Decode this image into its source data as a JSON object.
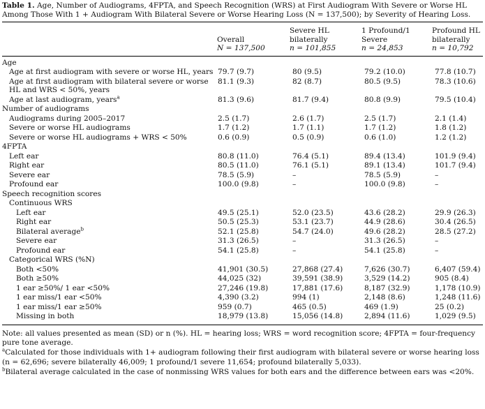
{
  "caption": {
    "label": "Table 1.",
    "text": "Age, Number of Audiograms, 4FPTA, and Speech Recognition (WRS) at First Audiogram With Severe or Worse HL Among Those With 1 + Audiogram With Bilateral Severe or Worse Hearing Loss (N = 137,500); by Severity of Hearing Loss."
  },
  "columns": [
    {
      "line1": "Overall",
      "line2": "N = 137,500"
    },
    {
      "line1": "Severe HL",
      "line1b": "bilaterally",
      "line2": "n = 101,855"
    },
    {
      "line1": "1 Profound/1",
      "line1b": "Severe",
      "line2": "n = 24,853"
    },
    {
      "line1": "Profound HL",
      "line1b": "bilaterally",
      "line2": "n = 10,792"
    }
  ],
  "rows": [
    {
      "indent": 0,
      "label": "Age",
      "values": [
        "",
        "",
        "",
        ""
      ]
    },
    {
      "indent": 1,
      "label": "Age at first audiogram with severe or worse HL, years",
      "values": [
        "79.7 (9.7)",
        "80 (9.5)",
        "79.2 (10.0)",
        "77.8 (10.7)"
      ]
    },
    {
      "indent": 1,
      "label": "Age at first audiogram with bilateral severe or worse HL and WRS < 50%, years",
      "values": [
        "81.1 (9.3)",
        "82 (8.7)",
        "80.5 (9.5)",
        "78.3 (10.6)"
      ]
    },
    {
      "indent": 1,
      "label": "Age at last audiogram, years",
      "sup": "a",
      "values": [
        "81.3 (9.6)",
        "81.7 (9.4)",
        "80.8 (9.9)",
        "79.5 (10.4)"
      ]
    },
    {
      "indent": 0,
      "label": "Number of audiograms",
      "values": [
        "",
        "",
        "",
        ""
      ]
    },
    {
      "indent": 1,
      "label": "Audiograms during 2005–2017",
      "values": [
        "2.5 (1.7)",
        "2.6 (1.7)",
        "2.5 (1.7)",
        "2.1 (1.4)"
      ]
    },
    {
      "indent": 1,
      "label": "Severe or worse HL audiograms",
      "values": [
        "1.7 (1.2)",
        "1.7 (1.1)",
        "1.7 (1.2)",
        "1.8 (1.2)"
      ]
    },
    {
      "indent": 1,
      "label": "Severe or worse HL audiograms + WRS < 50%",
      "values": [
        "0.6 (0.9)",
        "0.5 (0.9)",
        "0.6 (1.0)",
        "1.2 (1.2)"
      ]
    },
    {
      "indent": 0,
      "label": "4FPTA",
      "values": [
        "",
        "",
        "",
        ""
      ]
    },
    {
      "indent": 1,
      "label": "Left ear",
      "values": [
        "80.8 (11.0)",
        "76.4 (5.1)",
        "89.4 (13.4)",
        "101.9 (9.4)"
      ]
    },
    {
      "indent": 1,
      "label": "Right ear",
      "values": [
        "80.5 (11.0)",
        "76.1 (5.1)",
        "89.1 (13.4)",
        "101.7 (9.4)"
      ]
    },
    {
      "indent": 1,
      "label": "Severe ear",
      "values": [
        "78.5 (5.9)",
        "–",
        "78.5 (5.9)",
        "–"
      ]
    },
    {
      "indent": 1,
      "label": "Profound ear",
      "values": [
        "100.0 (9.8)",
        "–",
        "100.0 (9.8)",
        "–"
      ]
    },
    {
      "indent": 0,
      "label": "Speech recognition scores",
      "values": [
        "",
        "",
        "",
        ""
      ]
    },
    {
      "indent": 1,
      "label": "Continuous WRS",
      "values": [
        "",
        "",
        "",
        ""
      ]
    },
    {
      "indent": 2,
      "label": "Left ear",
      "values": [
        "49.5 (25.1)",
        "52.0 (23.5)",
        "43.6 (28.2)",
        "29.9 (26.3)"
      ]
    },
    {
      "indent": 2,
      "label": "Right ear",
      "values": [
        "50.5 (25.3)",
        "53.1 (23.7)",
        "44.9 (28.6)",
        "30.4 (26.5)"
      ]
    },
    {
      "indent": 2,
      "label": "Bilateral average",
      "sup": "b",
      "values": [
        "52.1 (25.8)",
        "54.7 (24.0)",
        "49.6 (28.2)",
        "28.5 (27.2)"
      ]
    },
    {
      "indent": 2,
      "label": "Severe ear",
      "values": [
        "31.3 (26.5)",
        "–",
        "31.3 (26.5)",
        "–"
      ]
    },
    {
      "indent": 2,
      "label": "Profound ear",
      "values": [
        "54.1 (25.8)",
        "–",
        "54.1 (25.8)",
        "–"
      ]
    },
    {
      "indent": 1,
      "label": "Categorical WRS (%N)",
      "values": [
        "",
        "",
        "",
        ""
      ]
    },
    {
      "indent": 2,
      "label": "Both <50%",
      "values": [
        "41,901 (30.5)",
        "27,868 (27.4)",
        "7,626 (30.7)",
        "6,407 (59.4)"
      ]
    },
    {
      "indent": 2,
      "label": "Both ≥50%",
      "values": [
        "44,025 (32)",
        "39,591 (38.9)",
        "3,529 (14.2)",
        "905 (8.4)"
      ]
    },
    {
      "indent": 2,
      "label": "1 ear ≥50%/ 1 ear <50%",
      "values": [
        "27,246 (19.8)",
        "17,881 (17.6)",
        "8,187 (32.9)",
        "1,178 (10.9)"
      ]
    },
    {
      "indent": 2,
      "label": "1 ear miss/1 ear <50%",
      "values": [
        "4,390 (3.2)",
        "994 (1)",
        "2,148 (8.6)",
        "1,248 (11.6)"
      ]
    },
    {
      "indent": 2,
      "label": "1 ear miss/1 ear ≥50%",
      "values": [
        "959 (0.7)",
        "465 (0.5)",
        "469 (1.9)",
        "25 (0.2)"
      ]
    },
    {
      "indent": 2,
      "label": "Missing in both",
      "values": [
        "18,979 (13.8)",
        "15,056 (14.8)",
        "2,894 (11.6)",
        "1,029 (9.5)"
      ]
    }
  ],
  "notes": {
    "general": "Note: all values presented as mean (SD) or n (%). HL = hearing loss; WRS = word recognition score; 4FPTA = four-frequency pure tone average.",
    "a_mark": "a",
    "a": "Calculated for those individuals with 1+ audiogram following their first audiogram with bilateral severe or worse hearing loss (n = 62,696; severe bilaterally 46,009; 1 profound/1 severe 11,654; profound bilaterally 5,033).",
    "b_mark": "b",
    "b": "Bilateral average calculated in the case of nonmissing WRS values for both ears and the difference between ears was <20%."
  }
}
